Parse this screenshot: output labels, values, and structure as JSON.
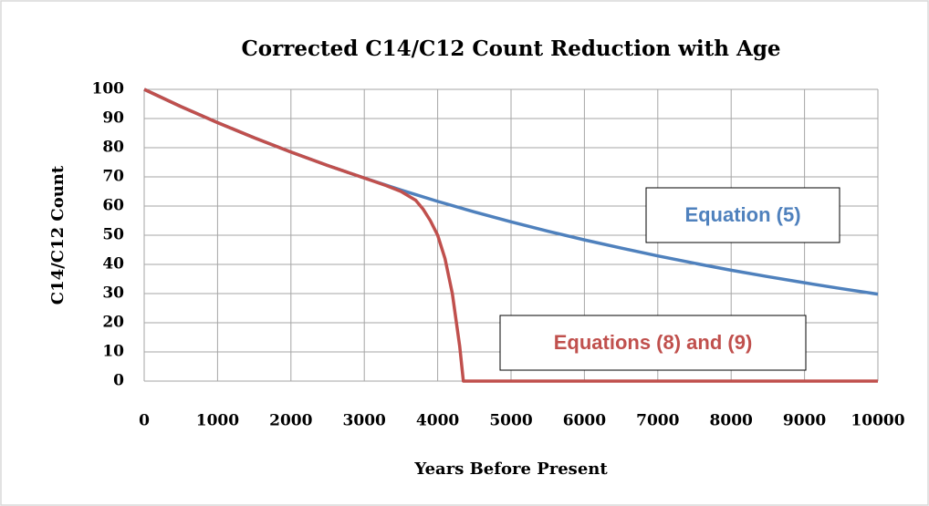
{
  "chart_data": {
    "type": "line",
    "title": "Corrected C14/C12 Count Reduction with Age",
    "xlabel": "Years Before Present",
    "ylabel": "C14/C12 Count",
    "xlim": [
      0,
      10000
    ],
    "xticks": [
      0,
      1000,
      2000,
      3000,
      4000,
      5000,
      6000,
      7000,
      8000,
      9000,
      10000
    ],
    "ylim": [
      0,
      100
    ],
    "yticks": [
      0,
      10,
      20,
      30,
      40,
      50,
      60,
      70,
      80,
      90,
      100
    ],
    "grid": true,
    "series": [
      {
        "name": "Equation (5)",
        "color": "#4f81bd",
        "x": [
          0,
          500,
          1000,
          1500,
          2000,
          2500,
          3000,
          3500,
          4000,
          4500,
          5000,
          5500,
          6000,
          6500,
          7000,
          7500,
          8000,
          8500,
          9000,
          9500,
          10000
        ],
        "values": [
          100,
          94.1,
          88.6,
          83.4,
          78.5,
          73.9,
          69.6,
          65.5,
          61.6,
          58.0,
          54.6,
          51.4,
          48.4,
          45.6,
          42.9,
          40.4,
          38.0,
          35.8,
          33.7,
          31.7,
          29.8
        ]
      },
      {
        "name": "Equations (8) and (9)",
        "color": "#c0504d",
        "x": [
          0,
          500,
          1000,
          1500,
          2000,
          2500,
          3000,
          3300,
          3500,
          3700,
          3800,
          3900,
          4000,
          4100,
          4200,
          4300,
          4350,
          10000
        ],
        "values": [
          100,
          94.1,
          88.6,
          83.4,
          78.5,
          73.9,
          69.6,
          67,
          65,
          62,
          59,
          55,
          50,
          42,
          30,
          12,
          0,
          0
        ]
      }
    ],
    "annotations": [
      {
        "text": "Equation (5)",
        "color": "#4f81bd"
      },
      {
        "text": "Equations (8) and (9)",
        "color": "#c0504d"
      }
    ]
  }
}
